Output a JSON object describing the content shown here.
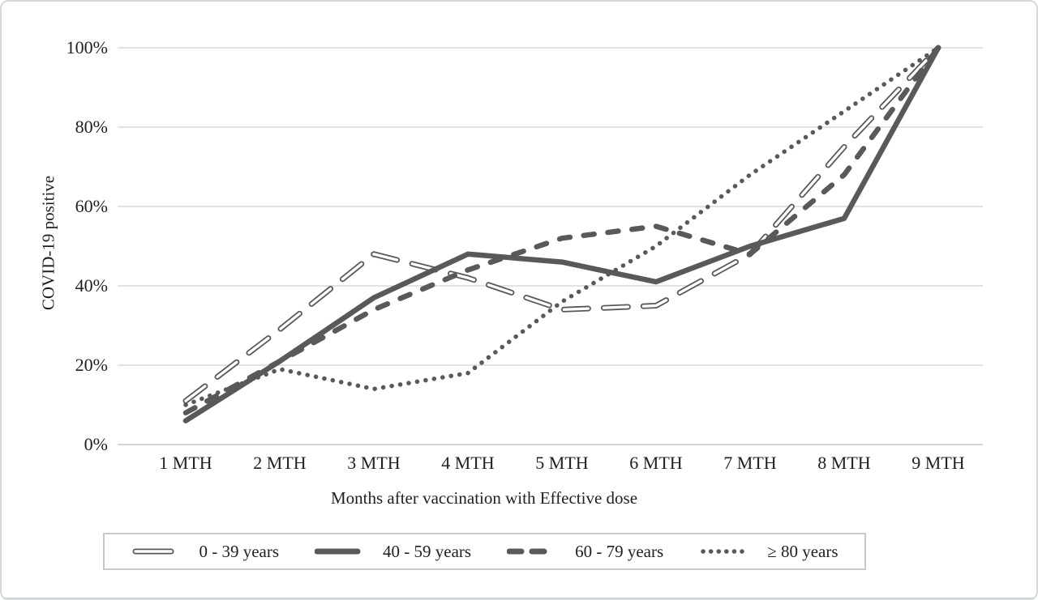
{
  "figure": {
    "description": "Line chart of COVID-19 positivity by months after vaccination for four age groups"
  },
  "colors": {
    "line": "#595959",
    "gridline": "#d9d9d9",
    "axisline": "#c6c6c6",
    "text": "#1f1f1f",
    "legend_border": "#c9c9c9",
    "background": "#ffffff"
  },
  "chart_data": {
    "type": "line",
    "title": "",
    "xlabel": "Months after vaccination with Effective dose",
    "ylabel": "COVID-19 positive",
    "categories": [
      "1 MTH",
      "2 MTH",
      "3 MTH",
      "4 MTH",
      "5 MTH",
      "6 MTH",
      "7 MTH",
      "8 MTH",
      "9 MTH"
    ],
    "y_ticks": [
      "0%",
      "20%",
      "40%",
      "60%",
      "80%",
      "100%"
    ],
    "y_tick_values": [
      0,
      20,
      40,
      60,
      80,
      100
    ],
    "ylim": [
      0,
      100
    ],
    "grid": "horizontal",
    "legend_position": "bottom",
    "series": [
      {
        "name": "0 - 39 years",
        "style": "outlined-dash",
        "values": [
          11,
          29,
          48,
          42,
          34,
          35,
          48,
          75,
          100
        ]
      },
      {
        "name": "40 - 59 years",
        "style": "solid",
        "values": [
          6,
          21,
          37,
          48,
          46,
          41,
          50,
          57,
          100
        ]
      },
      {
        "name": "60 - 79 years",
        "style": "dashed",
        "values": [
          8,
          21,
          34,
          44,
          52,
          55,
          48,
          68,
          100
        ]
      },
      {
        "name": "≥ 80 years",
        "style": "dotted",
        "values": [
          10,
          19,
          14,
          18,
          36,
          50,
          68,
          84,
          100
        ]
      }
    ]
  }
}
